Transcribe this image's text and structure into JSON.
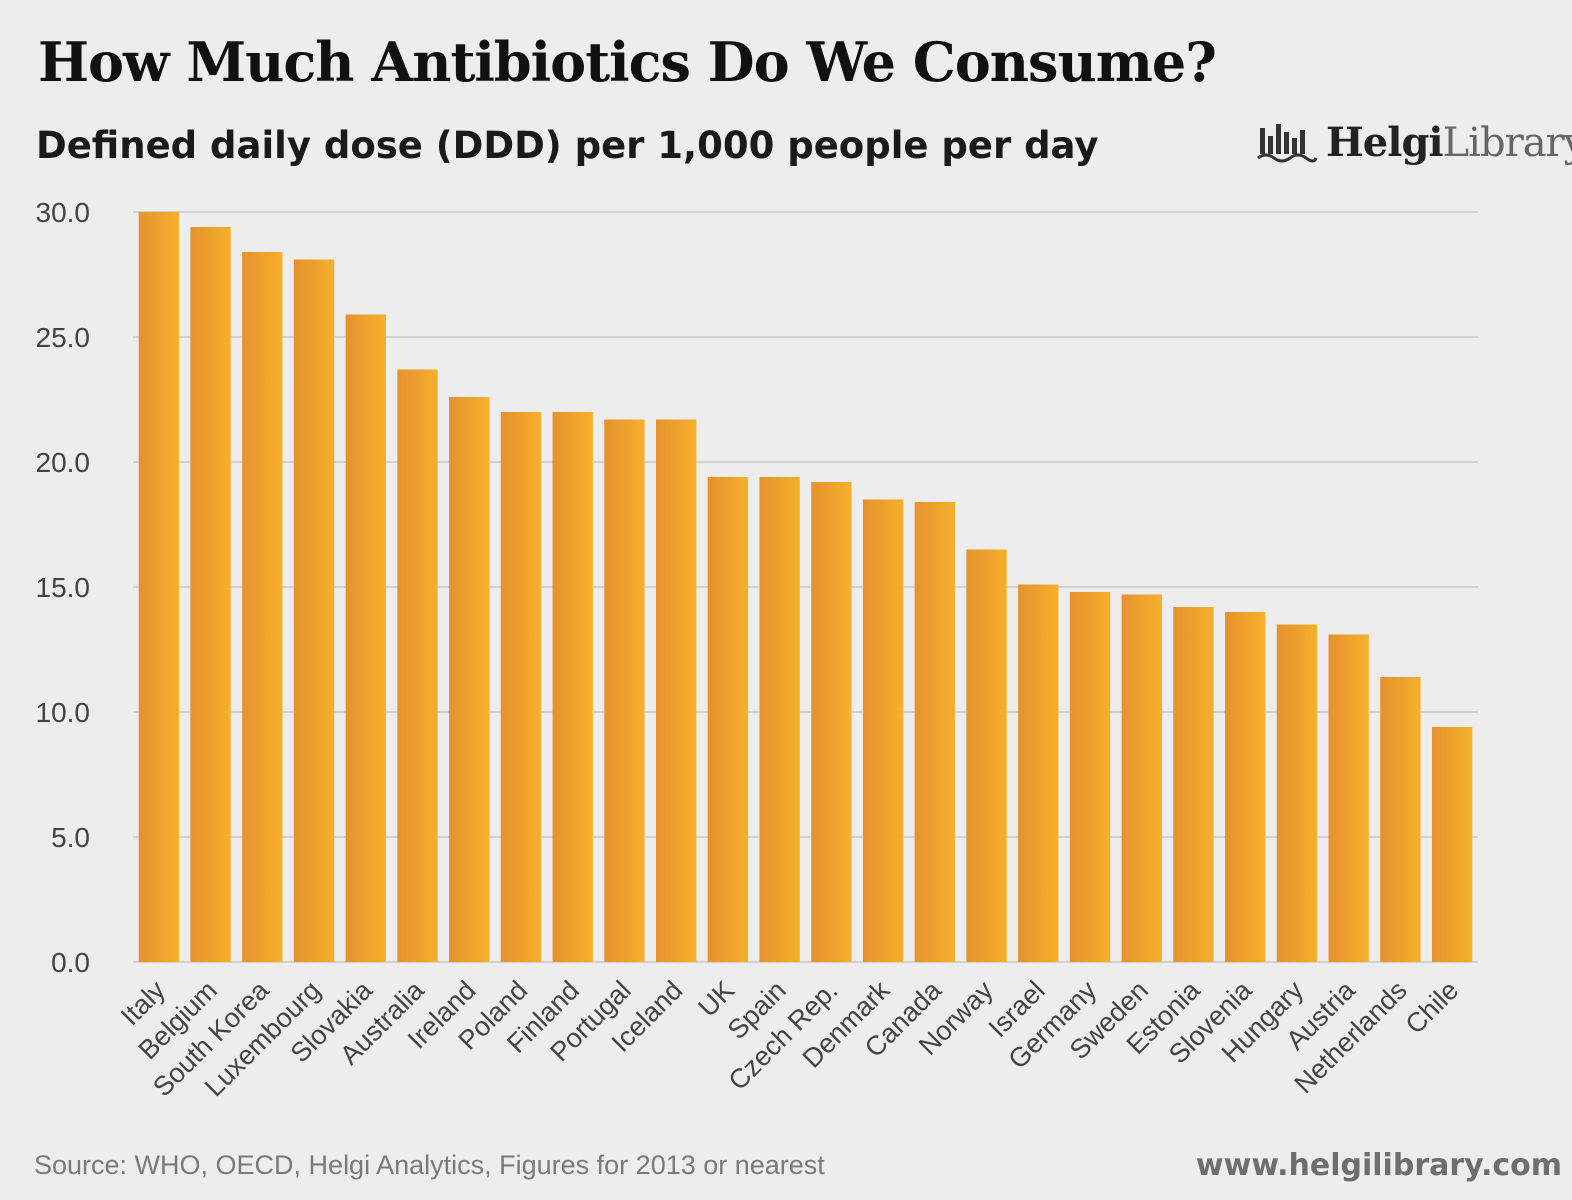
{
  "header": {
    "title": "How Much Antibiotics Do We Consume?",
    "subtitle": "Defined daily dose (DDD) per 1,000 people per day"
  },
  "logo": {
    "name_bold": "Helgi",
    "name_light": "Library.",
    "icon": "bar-chart-logo-icon"
  },
  "footer": {
    "source": "Source: WHO, OECD, Helgi Analytics, Figures for 2013 or nearest",
    "website": "www.helgilibrary.com"
  },
  "colors": {
    "bar": "#f0a630",
    "bar_dark": "#e69432",
    "grid": "#c8c8c8",
    "background": "#ededed"
  },
  "chart_data": {
    "type": "bar",
    "title": "How Much Antibiotics Do We Consume?",
    "subtitle": "Defined daily dose (DDD) per 1,000 people per day",
    "categories": [
      "Italy",
      "Belgium",
      "South Korea",
      "Luxembourg",
      "Slovakia",
      "Australia",
      "Ireland",
      "Poland",
      "Finland",
      "Portugal",
      "Iceland",
      "UK",
      "Spain",
      "Czech Rep.",
      "Denmark",
      "Canada",
      "Norway",
      "Israel",
      "Germany",
      "Sweden",
      "Estonia",
      "Slovenia",
      "Hungary",
      "Austria",
      "Netherlands",
      "Chile"
    ],
    "values": [
      30.0,
      29.4,
      28.4,
      28.1,
      25.9,
      23.7,
      22.6,
      22.0,
      22.0,
      21.7,
      21.7,
      19.4,
      19.4,
      19.2,
      18.5,
      18.4,
      16.5,
      15.1,
      14.8,
      14.7,
      14.2,
      14.0,
      13.5,
      13.1,
      11.4,
      9.4
    ],
    "yticks": [
      "0.0",
      "5.0",
      "10.0",
      "15.0",
      "20.0",
      "25.0",
      "30.0"
    ],
    "ylim": [
      0,
      30
    ],
    "xlabel": "",
    "ylabel": "",
    "grid": true
  }
}
